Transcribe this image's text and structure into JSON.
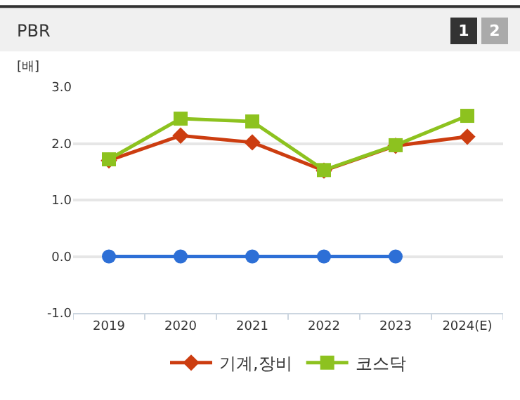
{
  "chart_data": {
    "type": "line",
    "title": "PBR",
    "ylabel": "[배]",
    "annotations": [
      "1",
      "2"
    ],
    "categories": [
      "2019",
      "2020",
      "2021",
      "2022",
      "2023",
      "2024(E)"
    ],
    "series": [
      {
        "color": "#2d6fd6",
        "marker": "circle",
        "values": [
          0.0,
          0.0,
          0.0,
          0.0,
          0.0,
          null
        ]
      },
      {
        "name": "기계,장비",
        "color": "#cc3d10",
        "marker": "diamond",
        "values": [
          1.7,
          2.14,
          2.02,
          1.52,
          1.96,
          2.12
        ]
      },
      {
        "name": "코스닥",
        "color": "#8dc21f",
        "marker": "square",
        "values": [
          1.72,
          2.44,
          2.39,
          1.53,
          1.97,
          2.49
        ]
      }
    ],
    "ylim": [
      -1,
      3
    ],
    "yticks": [
      {
        "value": -1,
        "label": "-1.0"
      },
      {
        "value": 0,
        "label": "0.0"
      },
      {
        "value": 1,
        "label": "1.0"
      },
      {
        "value": 2,
        "label": "2.0"
      },
      {
        "value": 3,
        "label": "3.0"
      }
    ],
    "grid": "y",
    "legend": "bottom"
  }
}
